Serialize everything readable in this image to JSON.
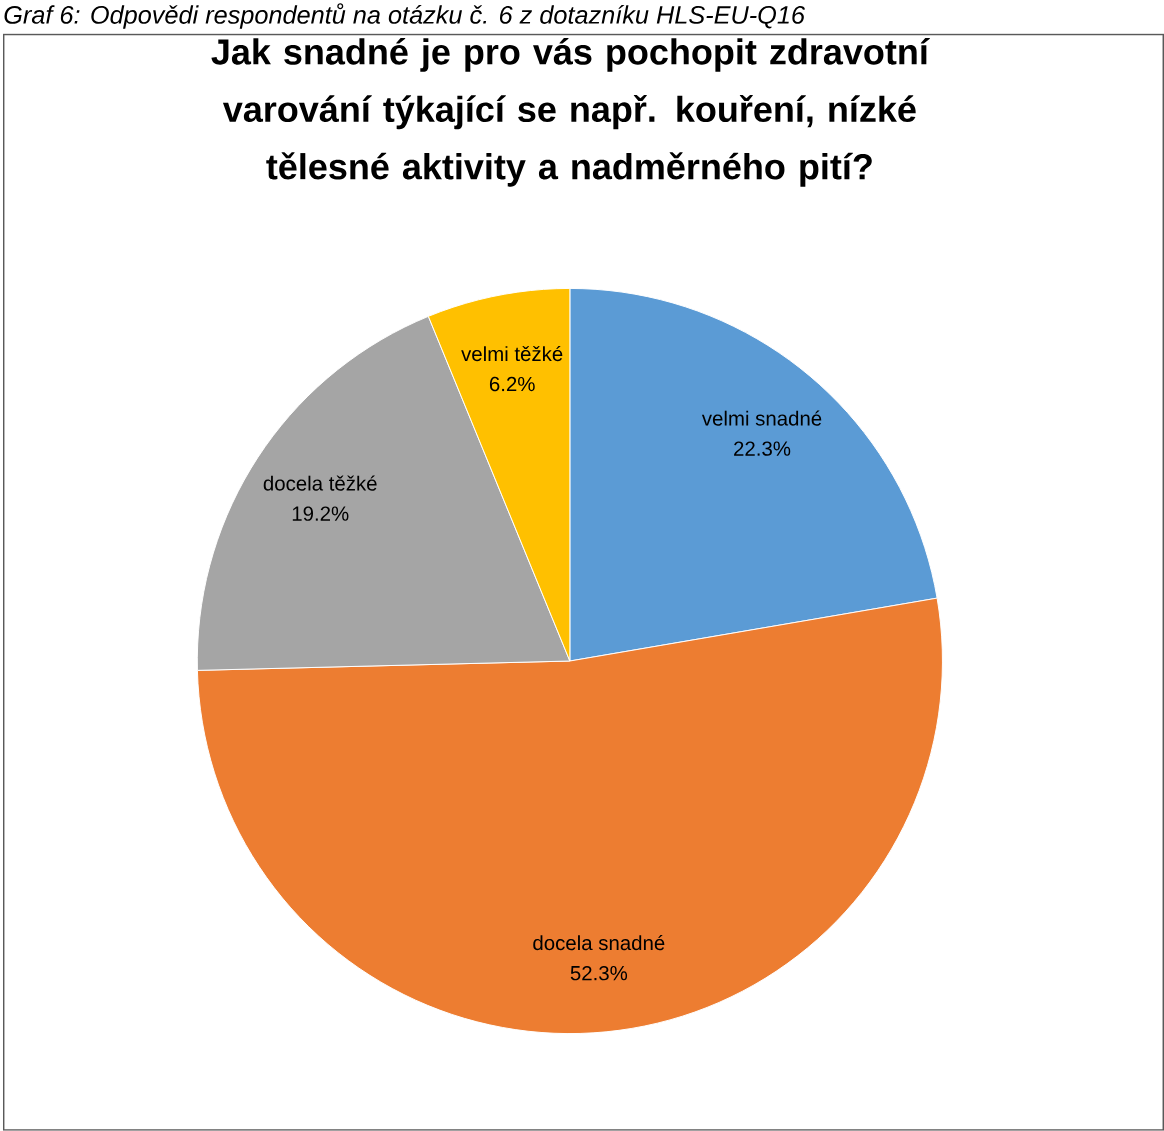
{
  "chart_data": {
    "type": "pie",
    "title": "Jak snadné je pro vás pochopit zdravotní varování týkající se např. kouření, nízké tělesné aktivity a nadměrného pití?",
    "annotations": [
      "Graf 6: Odpovědi respondentů na otázku č. 6 z dotazníku HLS-EU-Q16"
    ],
    "categories": [
      "velmi snadné",
      "docela snadné",
      "docela těžké",
      "velmi těžké"
    ],
    "values": [
      22.3,
      52.3,
      19.2,
      6.2
    ],
    "value_labels": [
      "22.3%",
      "52.3%",
      "19.2%",
      "6.2%"
    ],
    "colors": [
      "#5b9bd5",
      "#ed7d31",
      "#a5a5a5",
      "#ffc000"
    ]
  }
}
